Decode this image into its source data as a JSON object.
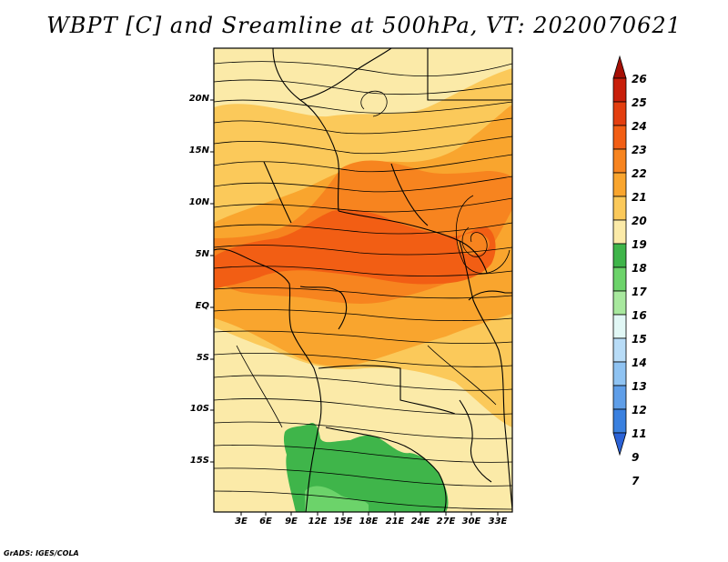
{
  "title": "WBPT [C] and Sreamline at 500hPa, VT: 2020070621",
  "lat_labels": [
    "20N",
    "15N",
    "10N",
    "5N",
    "EQ",
    "5S",
    "10S",
    "15S"
  ],
  "lon_labels": [
    "3E",
    "6E",
    "9E",
    "12E",
    "15E",
    "18E",
    "21E",
    "24E",
    "27E",
    "30E",
    "33E"
  ],
  "colorbar": {
    "labels": [
      "26",
      "25",
      "24",
      "23",
      "22",
      "21",
      "20",
      "19",
      "18",
      "17",
      "16",
      "15",
      "14",
      "13",
      "12",
      "11",
      "9",
      "7"
    ],
    "colors": [
      "#a50f05",
      "#c81e0a",
      "#e33e0f",
      "#f25e14",
      "#f7841f",
      "#f9a52e",
      "#fbc95a",
      "#fbeaa8",
      "#3fb54a",
      "#6cd36a",
      "#a8e89e",
      "#e1f7f5",
      "#b8dcf7",
      "#8fc3f2",
      "#5f9ee8",
      "#3a80df",
      "#2b62d6"
    ]
  },
  "credit": "GrADS: IGES/COLA"
}
